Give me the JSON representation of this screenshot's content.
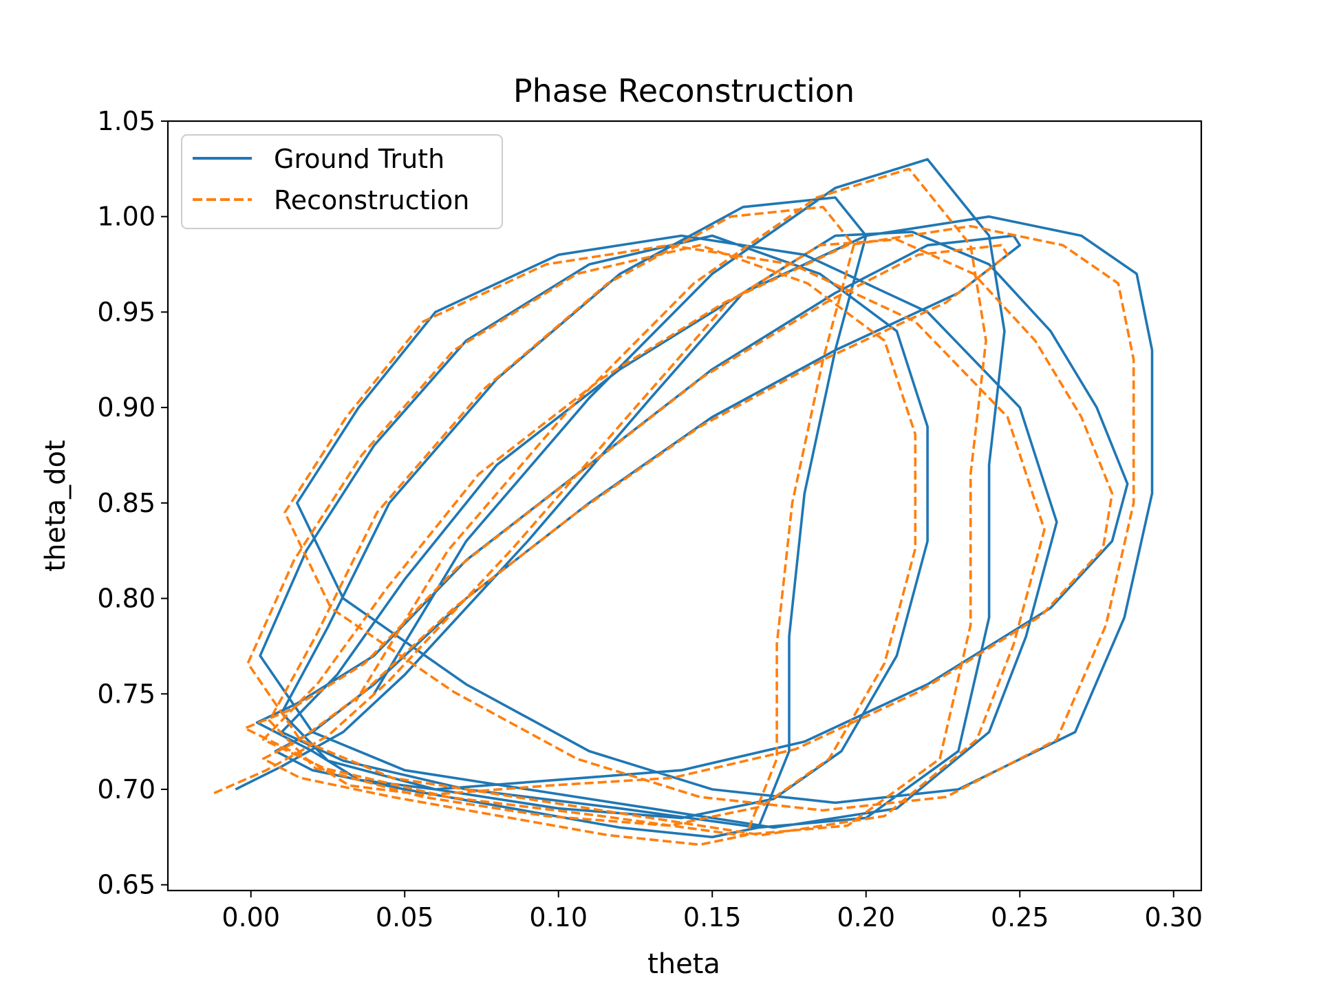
{
  "chart_data": {
    "type": "line",
    "title": "Phase Reconstruction",
    "xlabel": "theta",
    "ylabel": "theta_dot",
    "xlim": [
      -0.027,
      0.309
    ],
    "ylim": [
      0.647,
      1.05
    ],
    "xticks": [
      "0.00",
      "0.05",
      "0.10",
      "0.15",
      "0.20",
      "0.25",
      "0.30"
    ],
    "yticks": [
      "0.65",
      "0.70",
      "0.75",
      "0.80",
      "0.85",
      "0.90",
      "0.95",
      "1.00",
      "1.05"
    ],
    "xtick_values": [
      0.0,
      0.05,
      0.1,
      0.15,
      0.2,
      0.25,
      0.3
    ],
    "ytick_values": [
      0.65,
      0.7,
      0.75,
      0.8,
      0.85,
      0.9,
      0.95,
      1.0,
      1.05
    ],
    "grid": false,
    "legend_position": "top-left",
    "series": [
      {
        "name": "Ground Truth",
        "color": "#1f77b4",
        "style": "solid",
        "x": [
          -0.005,
          0.01,
          0.03,
          0.05,
          0.09,
          0.13,
          0.16,
          0.19,
          0.215,
          0.24,
          0.26,
          0.275,
          0.285,
          0.28,
          0.26,
          0.22,
          0.18,
          0.14,
          0.1,
          0.06,
          0.035,
          0.02,
          0.002,
          0.015,
          0.04,
          0.07,
          0.11,
          0.15,
          0.19,
          0.22,
          0.248,
          0.25,
          0.23,
          0.19,
          0.15,
          0.11,
          0.07,
          0.04,
          0.02,
          0.008,
          0.02,
          0.05,
          0.085,
          0.12,
          0.15,
          0.165,
          0.175,
          0.175,
          0.18,
          0.19,
          0.2,
          0.19,
          0.16,
          0.12,
          0.08,
          0.045,
          0.025,
          0.01,
          0.025,
          0.06,
          0.1,
          0.14,
          0.17,
          0.192,
          0.21,
          0.22,
          0.22,
          0.21,
          0.185,
          0.15,
          0.11,
          0.07,
          0.04,
          0.018,
          0.003,
          0.02,
          0.05,
          0.09,
          0.13,
          0.17,
          0.21,
          0.24,
          0.252,
          0.262,
          0.25,
          0.22,
          0.18,
          0.14,
          0.1,
          0.06,
          0.035,
          0.015,
          0.03,
          0.07,
          0.11,
          0.15,
          0.19,
          0.23,
          0.268,
          0.284,
          0.293,
          0.293,
          0.288,
          0.27,
          0.24,
          0.2,
          0.16,
          0.12,
          0.08,
          0.05,
          0.028,
          0.01,
          0.03,
          0.07,
          0.12,
          0.165,
          0.2,
          0.23,
          0.24,
          0.24,
          0.245,
          0.24,
          0.22,
          0.19,
          0.15,
          0.11,
          0.07,
          0.04
        ],
        "y": [
          0.7,
          0.712,
          0.73,
          0.76,
          0.83,
          0.905,
          0.96,
          0.99,
          0.992,
          0.975,
          0.94,
          0.9,
          0.86,
          0.83,
          0.795,
          0.755,
          0.725,
          0.71,
          0.705,
          0.7,
          0.705,
          0.72,
          0.735,
          0.745,
          0.77,
          0.82,
          0.87,
          0.92,
          0.96,
          0.985,
          0.99,
          0.985,
          0.96,
          0.93,
          0.895,
          0.85,
          0.8,
          0.755,
          0.73,
          0.72,
          0.71,
          0.7,
          0.69,
          0.68,
          0.675,
          0.68,
          0.72,
          0.78,
          0.855,
          0.93,
          0.99,
          1.01,
          1.005,
          0.97,
          0.915,
          0.85,
          0.785,
          0.74,
          0.715,
          0.7,
          0.69,
          0.685,
          0.695,
          0.72,
          0.77,
          0.83,
          0.89,
          0.94,
          0.97,
          0.99,
          0.975,
          0.935,
          0.88,
          0.825,
          0.77,
          0.73,
          0.71,
          0.7,
          0.69,
          0.68,
          0.69,
          0.73,
          0.78,
          0.84,
          0.9,
          0.95,
          0.98,
          0.99,
          0.98,
          0.95,
          0.9,
          0.85,
          0.8,
          0.755,
          0.72,
          0.7,
          0.693,
          0.7,
          0.73,
          0.79,
          0.855,
          0.93,
          0.97,
          0.99,
          1.0,
          0.99,
          0.96,
          0.92,
          0.87,
          0.81,
          0.76,
          0.73,
          0.715,
          0.7,
          0.69,
          0.68,
          0.685,
          0.72,
          0.79,
          0.87,
          0.94,
          0.99,
          1.03,
          1.015,
          0.97,
          0.905,
          0.83,
          0.75
        ]
      },
      {
        "name": "Reconstruction",
        "color": "#ff7f0e",
        "style": "dashed",
        "x": [
          -0.012,
          0.005,
          0.025,
          0.045,
          0.085,
          0.125,
          0.155,
          0.185,
          0.21,
          0.235,
          0.255,
          0.27,
          0.28,
          0.277,
          0.257,
          0.217,
          0.177,
          0.137,
          0.097,
          0.057,
          0.032,
          0.017,
          -0.002,
          0.012,
          0.037,
          0.067,
          0.107,
          0.147,
          0.187,
          0.217,
          0.244,
          0.246,
          0.226,
          0.186,
          0.146,
          0.106,
          0.066,
          0.036,
          0.016,
          0.004,
          0.016,
          0.046,
          0.081,
          0.116,
          0.146,
          0.161,
          0.171,
          0.171,
          0.176,
          0.186,
          0.196,
          0.186,
          0.156,
          0.116,
          0.076,
          0.041,
          0.021,
          0.006,
          0.021,
          0.056,
          0.096,
          0.136,
          0.166,
          0.188,
          0.206,
          0.216,
          0.216,
          0.206,
          0.181,
          0.146,
          0.106,
          0.066,
          0.036,
          0.014,
          -0.001,
          0.016,
          0.046,
          0.086,
          0.126,
          0.166,
          0.206,
          0.236,
          0.248,
          0.258,
          0.246,
          0.216,
          0.176,
          0.136,
          0.096,
          0.056,
          0.031,
          0.011,
          0.026,
          0.066,
          0.106,
          0.146,
          0.186,
          0.226,
          0.262,
          0.278,
          0.287,
          0.287,
          0.282,
          0.264,
          0.234,
          0.194,
          0.154,
          0.114,
          0.074,
          0.044,
          0.022,
          0.004,
          0.024,
          0.064,
          0.114,
          0.159,
          0.194,
          0.224,
          0.234,
          0.234,
          0.239,
          0.234,
          0.214,
          0.184,
          0.144,
          0.104,
          0.064,
          0.034
        ],
        "y": [
          0.698,
          0.71,
          0.728,
          0.757,
          0.826,
          0.9,
          0.955,
          0.985,
          0.988,
          0.97,
          0.935,
          0.895,
          0.855,
          0.826,
          0.791,
          0.751,
          0.721,
          0.706,
          0.702,
          0.697,
          0.702,
          0.717,
          0.732,
          0.741,
          0.766,
          0.816,
          0.866,
          0.916,
          0.955,
          0.98,
          0.985,
          0.98,
          0.955,
          0.925,
          0.89,
          0.845,
          0.795,
          0.75,
          0.726,
          0.716,
          0.706,
          0.696,
          0.686,
          0.676,
          0.671,
          0.676,
          0.716,
          0.776,
          0.85,
          0.925,
          0.985,
          1.005,
          1.0,
          0.965,
          0.91,
          0.845,
          0.78,
          0.736,
          0.711,
          0.696,
          0.686,
          0.681,
          0.691,
          0.716,
          0.766,
          0.826,
          0.886,
          0.935,
          0.965,
          0.985,
          0.97,
          0.93,
          0.875,
          0.82,
          0.766,
          0.726,
          0.706,
          0.696,
          0.686,
          0.676,
          0.686,
          0.726,
          0.776,
          0.836,
          0.895,
          0.945,
          0.975,
          0.985,
          0.975,
          0.945,
          0.895,
          0.845,
          0.795,
          0.751,
          0.716,
          0.696,
          0.689,
          0.696,
          0.726,
          0.786,
          0.85,
          0.925,
          0.965,
          0.985,
          0.995,
          0.985,
          0.955,
          0.915,
          0.865,
          0.805,
          0.756,
          0.726,
          0.711,
          0.696,
          0.686,
          0.676,
          0.681,
          0.716,
          0.786,
          0.865,
          0.935,
          0.985,
          1.025,
          1.01,
          0.965,
          0.9,
          0.825,
          0.746
        ]
      }
    ]
  }
}
